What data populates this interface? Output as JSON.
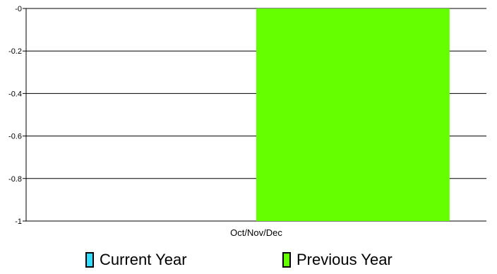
{
  "chart_data": {
    "type": "bar",
    "categories": [
      "Oct/Nov/Dec"
    ],
    "series": [
      {
        "name": "Current Year",
        "values": [
          0
        ],
        "color": "#33ddff"
      },
      {
        "name": "Previous Year",
        "values": [
          -1
        ],
        "color": "#66ff00"
      }
    ],
    "yticks": [
      "-0",
      "-0.2",
      "-0.4",
      "-0.6",
      "-0.8",
      "-1"
    ],
    "ytick_values": [
      0,
      -0.2,
      -0.4,
      -0.6,
      -0.8,
      -1
    ],
    "ylim": [
      -1,
      0
    ],
    "grid": true,
    "legend_position": "bottom",
    "title": "",
    "xlabel": "",
    "ylabel": ""
  }
}
